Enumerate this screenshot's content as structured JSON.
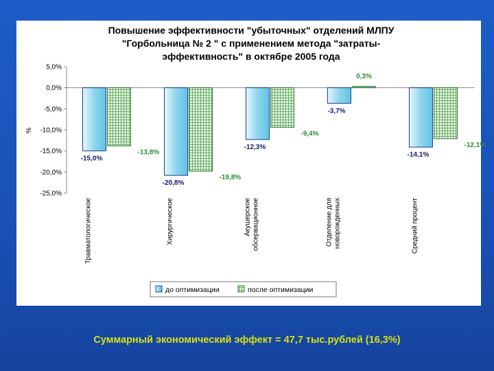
{
  "chart_data": {
    "type": "bar",
    "title_lines": [
      "Повышение эффективности \"убыточных\" отделений МЛПУ",
      "\"Горбольница № 2 \" с применением метода \"затраты-",
      "эффективность\" в октябре 2005 года"
    ],
    "ylabel": "%",
    "ylim": [
      -25,
      5
    ],
    "yticks": [
      5,
      0,
      -5,
      -10,
      -15,
      -20,
      -25
    ],
    "ytick_labels": [
      "5,0%",
      "0,0%",
      "-5,0%",
      "-10,0%",
      "-15,0%",
      "-20,0%",
      "-25,0%"
    ],
    "categories": [
      [
        "Травматологическое"
      ],
      [
        "Хирургическое"
      ],
      [
        "Акушерское",
        "обсервационное"
      ],
      [
        "Отделение для",
        "новорожденных"
      ],
      [
        "Средний процент"
      ]
    ],
    "series": [
      {
        "name": "до оптимизации",
        "values": [
          -15.0,
          -20.8,
          -12.3,
          -3.7,
          -14.1
        ],
        "labels": [
          "-15,0%",
          "-20,8%",
          "-12,3%",
          "-3,7%",
          "-14,1%"
        ],
        "color": "#9fdff2",
        "label_color": "#16197a"
      },
      {
        "name": "после оптимизации",
        "values": [
          -13.8,
          -19.8,
          -9.4,
          0.3,
          -12.1
        ],
        "labels": [
          "-13,8%",
          "-19,8%",
          "-9,4%",
          "0,3%",
          "-12,1%"
        ],
        "color": "#cbe8c0",
        "label_color": "#2e8a3a"
      }
    ],
    "grid": false,
    "legend_position": "bottom"
  },
  "footer": {
    "text": "Суммарный экономический эффект = 47,7 тыс.рублей (16,3%)",
    "color": "#d7e012"
  }
}
